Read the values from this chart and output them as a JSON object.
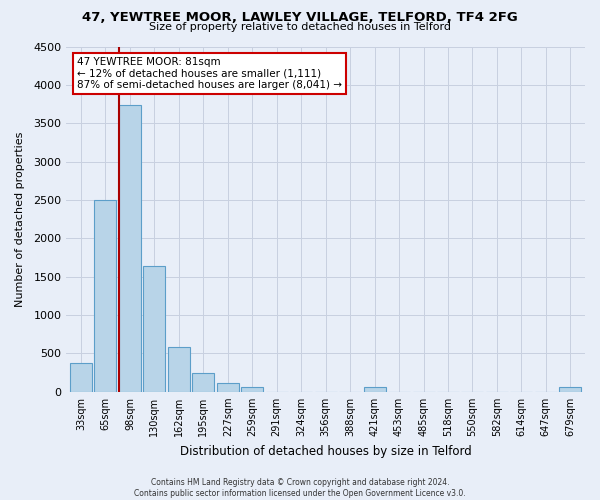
{
  "title": "47, YEWTREE MOOR, LAWLEY VILLAGE, TELFORD, TF4 2FG",
  "subtitle": "Size of property relative to detached houses in Telford",
  "xlabel": "Distribution of detached houses by size in Telford",
  "ylabel": "Number of detached properties",
  "bar_labels": [
    "33sqm",
    "65sqm",
    "98sqm",
    "130sqm",
    "162sqm",
    "195sqm",
    "227sqm",
    "259sqm",
    "291sqm",
    "324sqm",
    "356sqm",
    "388sqm",
    "421sqm",
    "453sqm",
    "485sqm",
    "518sqm",
    "550sqm",
    "582sqm",
    "614sqm",
    "647sqm",
    "679sqm"
  ],
  "bar_values": [
    375,
    2500,
    3740,
    1640,
    590,
    240,
    110,
    65,
    0,
    0,
    0,
    0,
    65,
    0,
    0,
    0,
    0,
    0,
    0,
    0,
    65
  ],
  "bar_color": "#b8d4e8",
  "bar_edge_color": "#5c9ec9",
  "marker_bar_index": 2,
  "marker_color": "#aa0000",
  "ylim": [
    0,
    4500
  ],
  "yticks": [
    0,
    500,
    1000,
    1500,
    2000,
    2500,
    3000,
    3500,
    4000,
    4500
  ],
  "annotation_title": "47 YEWTREE MOOR: 81sqm",
  "annotation_line1": "← 12% of detached houses are smaller (1,111)",
  "annotation_line2": "87% of semi-detached houses are larger (8,041) →",
  "footer_line1": "Contains HM Land Registry data © Crown copyright and database right 2024.",
  "footer_line2": "Contains public sector information licensed under the Open Government Licence v3.0.",
  "bg_color": "#e8eef8",
  "plot_bg_color": "#e8eef8",
  "grid_color": "#c8d0e0"
}
